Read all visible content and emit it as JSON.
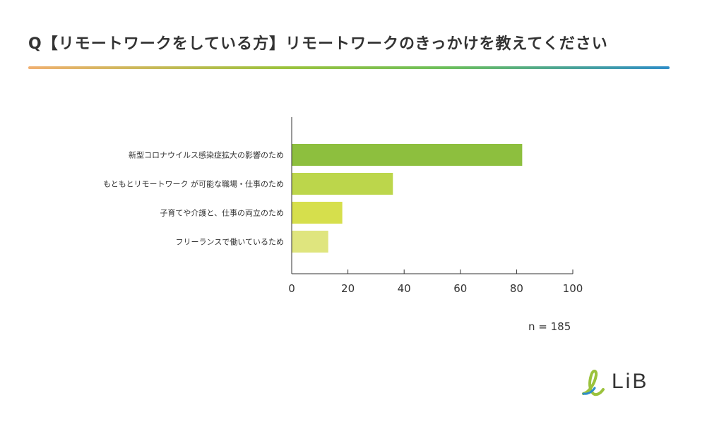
{
  "title": "Q【リモートワークをしている方】リモートワークのきっかけを教えてください",
  "n_label": "n = 185",
  "brand": {
    "text": "LiB"
  },
  "colors": {
    "axis": "#333333",
    "bars": [
      "#8dbf3e",
      "#bcd64b",
      "#d6df4c",
      "#dfe57e"
    ]
  },
  "chart_data": {
    "type": "bar",
    "orientation": "horizontal",
    "categories": [
      "新型コロナウイルス感染症拡大の影響のため",
      "もともとリモートワーク が可能な職場・仕事のため",
      "子育てや介護と、仕事の両立のため",
      "フリーランスで働いているため"
    ],
    "values": [
      82,
      36,
      18,
      13
    ],
    "xlim": [
      0,
      100
    ],
    "xticks": [
      0,
      20,
      40,
      60,
      80,
      100
    ],
    "grid": false,
    "legend": "none"
  }
}
